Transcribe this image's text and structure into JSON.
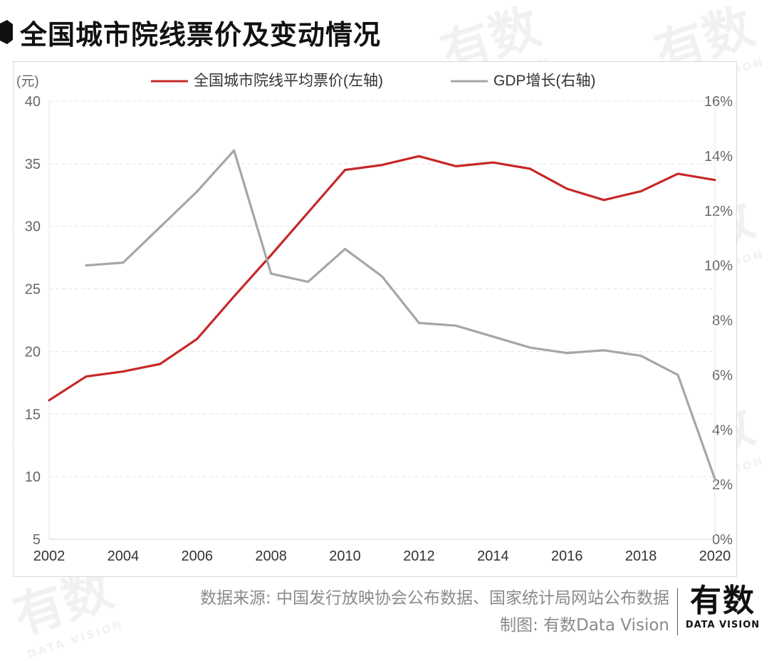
{
  "title": "全国城市院线票价及变动情况",
  "footer": {
    "source": "数据来源: 中国发行放映协会公布数据、国家统计局网站公布数据",
    "credit": "制图: 有数Data Vision"
  },
  "logo": {
    "cn": "有数",
    "en": "DATA VISION"
  },
  "watermark": {
    "cn": "有数",
    "en": "DATA VISION"
  },
  "colors": {
    "price": "#c62828",
    "gdp": "#a6a6a6",
    "axis_text": "#666666",
    "grid": "#e3e3e3"
  },
  "chart_data": {
    "type": "line",
    "title": "全国城市院线票价及变动情况",
    "left_unit": "(元)",
    "y_left": {
      "min": 5,
      "max": 40,
      "ticks": [
        "5",
        "10",
        "15",
        "20",
        "25",
        "30",
        "35",
        "40"
      ]
    },
    "y_right": {
      "min": 0,
      "max": 16,
      "ticks": [
        "0%",
        "2%",
        "4%",
        "6%",
        "8%",
        "10%",
        "12%",
        "14%",
        "16%"
      ]
    },
    "x": {
      "min": 2002,
      "max": 2020,
      "ticks": [
        "2002",
        "2004",
        "2006",
        "2008",
        "2010",
        "2012",
        "2014",
        "2016",
        "2018",
        "2020"
      ]
    },
    "grid": true,
    "legend_position": "top",
    "series": [
      {
        "name": "全国城市院线平均票价(左轴)",
        "axis": "left",
        "color": "#c62828",
        "x": [
          2002,
          2003,
          2004,
          2005,
          2006,
          2007,
          2008,
          2009,
          2010,
          2011,
          2012,
          2013,
          2014,
          2015,
          2016,
          2017,
          2018,
          2019,
          2020
        ],
        "values": [
          16.1,
          18.0,
          18.4,
          19.0,
          21.0,
          24.4,
          27.7,
          31.1,
          34.5,
          34.9,
          35.6,
          34.8,
          35.1,
          34.6,
          33.0,
          32.1,
          32.8,
          34.2,
          33.7
        ]
      },
      {
        "name": "GDP增长(右轴)",
        "axis": "right",
        "color": "#a6a6a6",
        "x": [
          2003,
          2004,
          2005,
          2006,
          2007,
          2008,
          2009,
          2010,
          2011,
          2012,
          2013,
          2014,
          2015,
          2016,
          2017,
          2018,
          2019,
          2020
        ],
        "values": [
          10.0,
          10.1,
          11.4,
          12.7,
          14.2,
          9.7,
          9.4,
          10.6,
          9.6,
          7.9,
          7.8,
          7.4,
          7.0,
          6.8,
          6.9,
          6.7,
          6.0,
          2.2
        ]
      }
    ]
  }
}
